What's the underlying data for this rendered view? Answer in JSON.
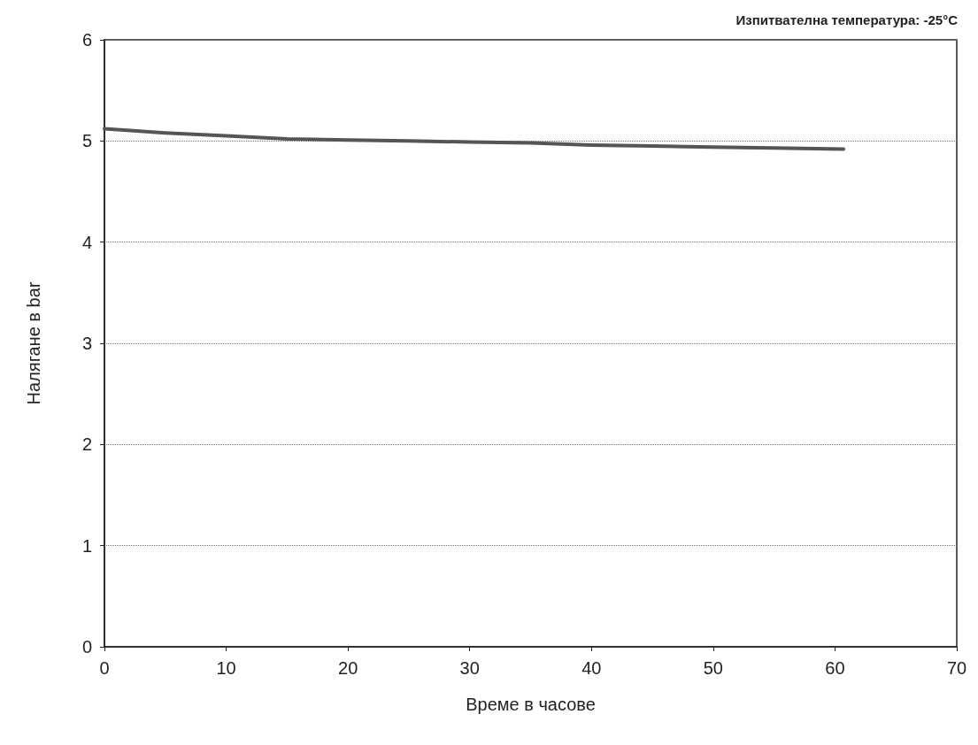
{
  "chart_data": {
    "type": "line",
    "title": "Изпитвателна температура: -25°C",
    "xlabel": "Време в часове",
    "ylabel": "Налягане в bar",
    "series": [
      {
        "color": "#555555",
        "x": [
          0,
          5,
          10,
          15,
          20,
          25,
          30,
          35,
          40,
          45,
          50,
          55,
          60.7
        ],
        "values": [
          5.12,
          5.08,
          5.05,
          5.02,
          5.01,
          5.0,
          4.99,
          4.98,
          4.96,
          4.95,
          4.94,
          4.93,
          4.92
        ]
      }
    ],
    "xlim": [
      0,
      70
    ],
    "xticks": [
      0,
      10,
      20,
      30,
      40,
      50,
      60,
      70
    ],
    "ylim": [
      0,
      6
    ],
    "yticks": [
      0,
      1,
      2,
      3,
      4,
      5,
      6
    ],
    "grid": "y",
    "marker": "none",
    "line_style": "solid"
  }
}
